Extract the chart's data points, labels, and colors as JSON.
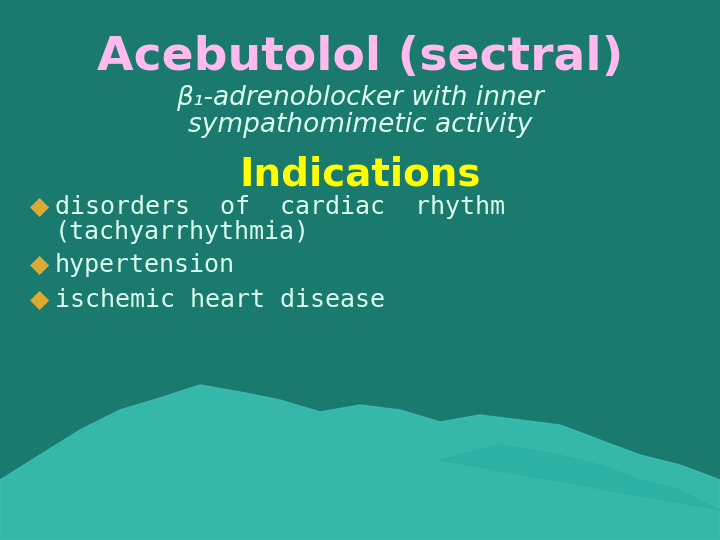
{
  "bg_color": "#1a7a6e",
  "title": "Acebutolol (sectral)",
  "title_color": "#ffbbee",
  "title_fontsize": 34,
  "subtitle_line1": "β₁-adrenoblocker with inner",
  "subtitle_line2": "sympathomimetic activity",
  "subtitle_color": "#ddffee",
  "subtitle_fontsize": 19,
  "indications_title": "Indications",
  "indications_color": "#ffff00",
  "indications_fontsize": 28,
  "bullet_color": "#ddaa33",
  "bullet_text_color": "#ddffee",
  "bullet_fontsize": 18,
  "blob_color": "#3abfb0",
  "blob_color2": "#2aafa0"
}
